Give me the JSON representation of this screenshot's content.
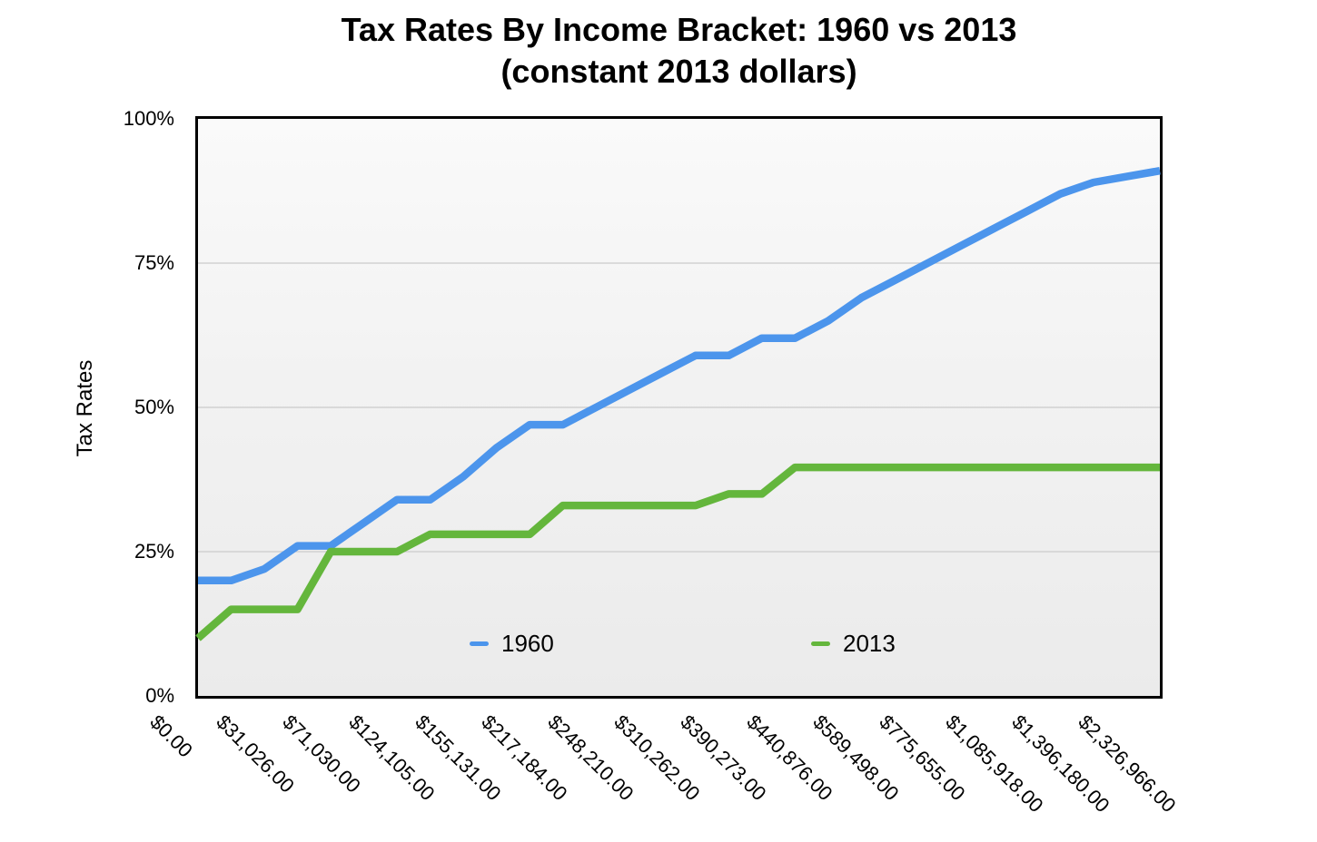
{
  "chart_data": {
    "type": "line",
    "title": "Tax Rates By Income Bracket: 1960 vs 2013",
    "subtitle": "(constant 2013 dollars)",
    "ylabel": "Tax Rates",
    "ylim": [
      0,
      100
    ],
    "ytick_values": [
      0,
      25,
      50,
      75,
      100
    ],
    "ytick_labels": [
      "0%",
      "25%",
      "50%",
      "75%",
      "100%"
    ],
    "grid": "horizontal gridlines at 25%, 50%, 75%; black frame around plot; light gray plot background",
    "x_axis": {
      "mode": "categorical-even-spacing",
      "num_points": 30,
      "labeled_indices": [
        0,
        2,
        4,
        6,
        8,
        10,
        12,
        14,
        16,
        18,
        20,
        22,
        24,
        26,
        28
      ],
      "tick_labels": [
        "$0.00",
        "$31,026.00",
        "$71,030.00",
        "$124,105.00",
        "$155,131.00",
        "$217,184.00",
        "$248,210.00",
        "$310,262.00",
        "$390,273.00",
        "$440,876.00",
        "$589,498.00",
        "$775,655.00",
        "$1,085,918.00",
        "$1,396,180.00",
        "$2,326,966.00"
      ],
      "tick_label_rotation_deg": 45
    },
    "legend": {
      "position": "inside-bottom-center",
      "entries": [
        "1960",
        "2013"
      ]
    },
    "series": [
      {
        "name": "1960",
        "color": "#4C95EC",
        "values": [
          20,
          20,
          22,
          26,
          26,
          30,
          34,
          34,
          38,
          43,
          47,
          47,
          50,
          53,
          56,
          59,
          59,
          62,
          62,
          65,
          69,
          72,
          75,
          78,
          81,
          84,
          87,
          89,
          90,
          91
        ]
      },
      {
        "name": "2013",
        "color": "#64B63C",
        "values": [
          10,
          15,
          15,
          15,
          25,
          25,
          25,
          28,
          28,
          28,
          28,
          33,
          33,
          33,
          33,
          33,
          35,
          35,
          39.6,
          39.6,
          39.6,
          39.6,
          39.6,
          39.6,
          39.6,
          39.6,
          39.6,
          39.6,
          39.6,
          39.6
        ]
      }
    ]
  },
  "colors": {
    "series_1960": "#4C95EC",
    "series_2013": "#64B63C",
    "gridline": "#cbcbcb",
    "frame": "#000000",
    "text": "#000000",
    "plot_background": "#eeeeee"
  }
}
